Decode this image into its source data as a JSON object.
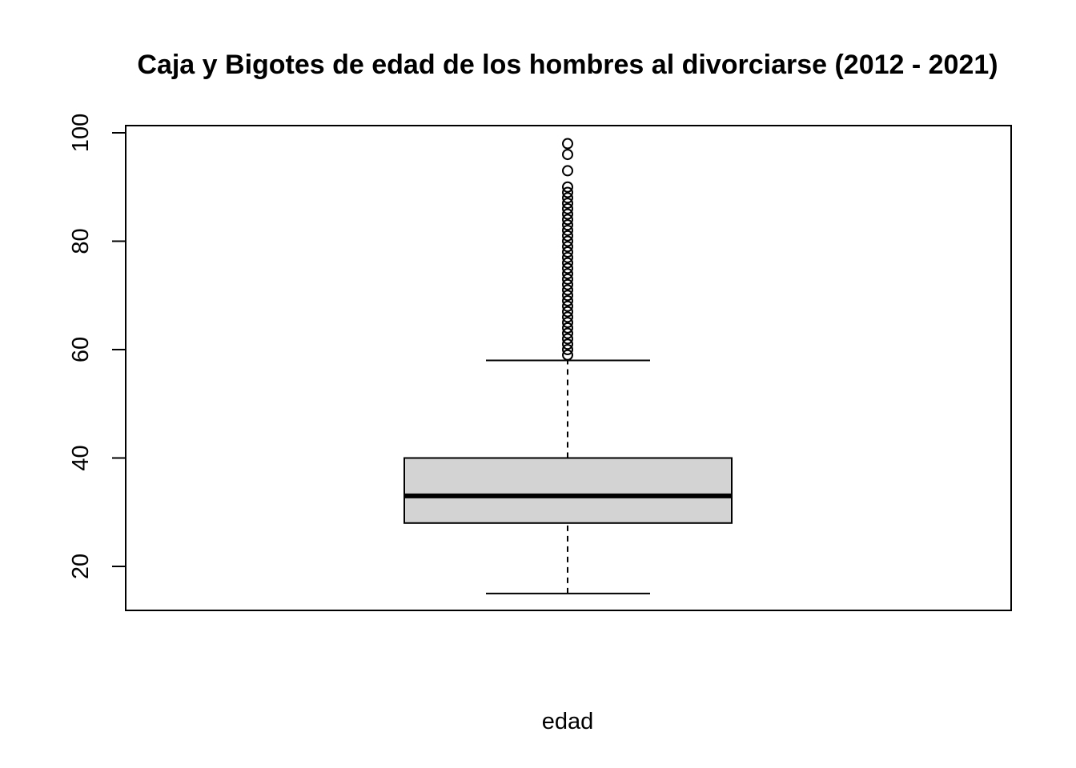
{
  "chart_data": {
    "type": "boxplot",
    "title": "Caja y Bigotes de edad de los hombres al divorciarse (2012 - 2021)",
    "xlabel": "edad",
    "ylabel": "",
    "ylim": [
      12,
      101
    ],
    "yticks": [
      20,
      40,
      60,
      80,
      100
    ],
    "ytick_labels": [
      "20",
      "40",
      "60",
      "80",
      "100"
    ],
    "grid": false,
    "box_fill": "#d3d3d3",
    "line_color": "#000000",
    "stats": {
      "whisker_low": 15,
      "q1": 28,
      "median": 33,
      "q3": 40,
      "whisker_high": 58
    },
    "outliers": [
      59,
      60,
      61,
      62,
      63,
      64,
      65,
      66,
      67,
      68,
      69,
      70,
      71,
      72,
      73,
      74,
      75,
      76,
      77,
      78,
      79,
      80,
      81,
      82,
      83,
      84,
      85,
      86,
      87,
      88,
      89,
      90,
      93,
      96,
      98
    ]
  }
}
